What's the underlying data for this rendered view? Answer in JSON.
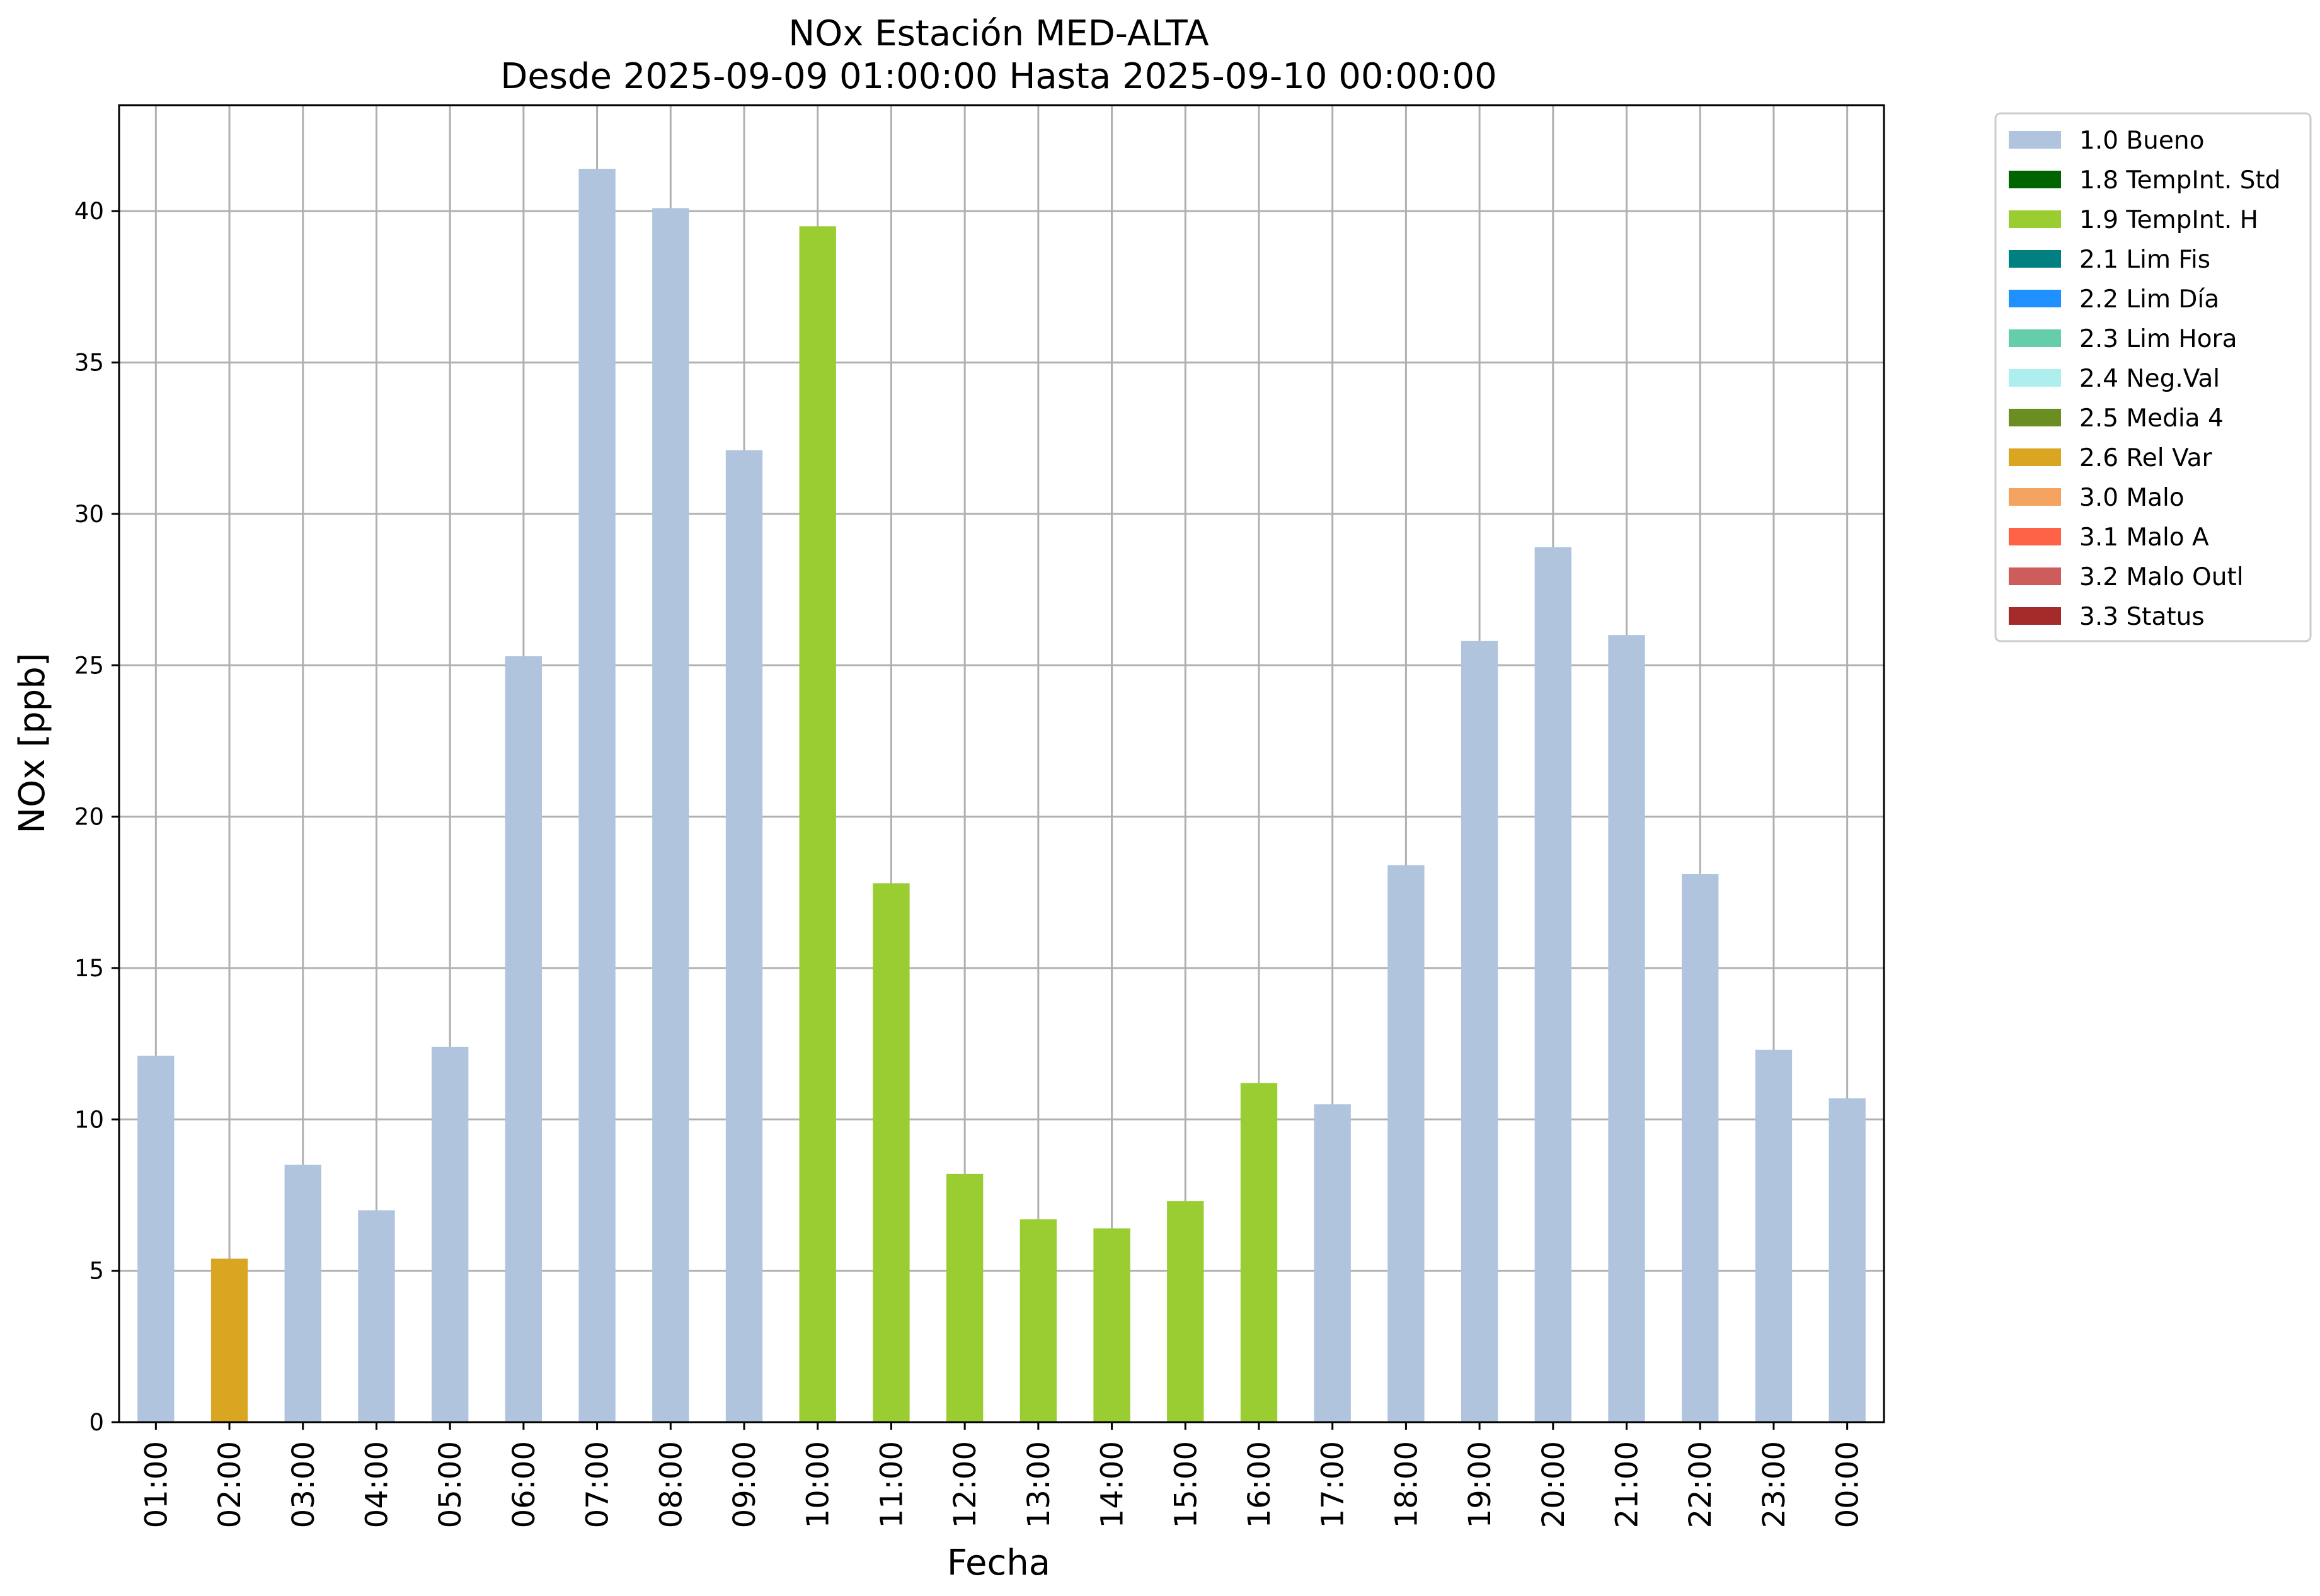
{
  "chart_data": {
    "type": "bar",
    "title": "NOx Estación MED-ALTA",
    "subtitle": "Desde 2025-09-09 01:00:00 Hasta 2025-09-10 00:00:00",
    "xlabel": "Fecha",
    "ylabel": "NOx [ppb]",
    "ylim": [
      0,
      43.5
    ],
    "yticks": [
      0,
      5,
      10,
      15,
      20,
      25,
      30,
      35,
      40
    ],
    "grid": true,
    "legend_position": "outside top-right",
    "categories": [
      "01:00",
      "02:00",
      "03:00",
      "04:00",
      "05:00",
      "06:00",
      "07:00",
      "08:00",
      "09:00",
      "10:00",
      "11:00",
      "12:00",
      "13:00",
      "14:00",
      "15:00",
      "16:00",
      "17:00",
      "18:00",
      "19:00",
      "20:00",
      "21:00",
      "22:00",
      "23:00",
      "00:00"
    ],
    "values": [
      12.1,
      5.4,
      8.5,
      7.0,
      12.4,
      25.3,
      41.4,
      40.1,
      32.1,
      39.5,
      17.8,
      8.2,
      6.7,
      6.4,
      7.3,
      11.2,
      10.5,
      18.4,
      25.8,
      28.9,
      26.0,
      18.1,
      12.3,
      10.7
    ],
    "flags": [
      "1.0 Bueno",
      "2.6 Rel Var",
      "1.0 Bueno",
      "1.0 Bueno",
      "1.0 Bueno",
      "1.0 Bueno",
      "1.0 Bueno",
      "1.0 Bueno",
      "1.0 Bueno",
      "1.9 TempInt. H",
      "1.9 TempInt. H",
      "1.9 TempInt. H",
      "1.9 TempInt. H",
      "1.9 TempInt. H",
      "1.9 TempInt. H",
      "1.9 TempInt. H",
      "1.0 Bueno",
      "1.0 Bueno",
      "1.0 Bueno",
      "1.0 Bueno",
      "1.0 Bueno",
      "1.0 Bueno",
      "1.0 Bueno",
      "1.0 Bueno"
    ],
    "legend": [
      {
        "label": "1.0 Bueno",
        "color": "#b0c4de"
      },
      {
        "label": "1.8 TempInt. Std",
        "color": "#006400"
      },
      {
        "label": "1.9 TempInt. H",
        "color": "#9acd32"
      },
      {
        "label": "2.1 Lim Fis",
        "color": "#008080"
      },
      {
        "label": "2.2 Lim Día",
        "color": "#1e90ff"
      },
      {
        "label": "2.3 Lim Hora",
        "color": "#66cdaa"
      },
      {
        "label": "2.4 Neg.Val",
        "color": "#afeeee"
      },
      {
        "label": "2.5 Media 4",
        "color": "#6b8e23"
      },
      {
        "label": "2.6 Rel Var",
        "color": "#daa520"
      },
      {
        "label": "3.0 Malo",
        "color": "#f4a460"
      },
      {
        "label": "3.1 Malo A",
        "color": "#ff6347"
      },
      {
        "label": "3.2 Malo Outl",
        "color": "#cd5c5c"
      },
      {
        "label": "3.3 Status",
        "color": "#a52a2a"
      }
    ]
  }
}
